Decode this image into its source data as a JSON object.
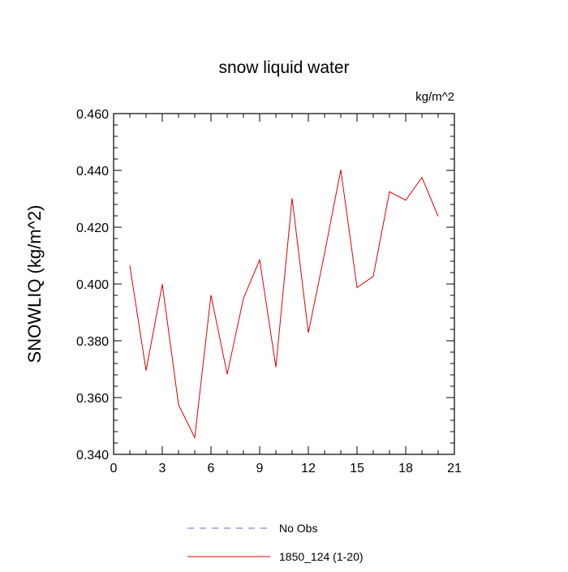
{
  "chart_data": {
    "type": "line",
    "title": "snow liquid water",
    "units_label": "kg/m^2",
    "xlabel": "",
    "ylabel": "SNOWLIQ  (kg/m^2)",
    "xlim": [
      0,
      21
    ],
    "ylim": [
      0.34,
      0.46
    ],
    "x_ticks": [
      0,
      3,
      6,
      9,
      12,
      15,
      18,
      21
    ],
    "x_tick_labels": [
      "0",
      "3",
      "6",
      "9",
      "12",
      "15",
      "18",
      "21"
    ],
    "y_ticks": [
      0.34,
      0.36,
      0.38,
      0.4,
      0.42,
      0.44,
      0.46
    ],
    "y_tick_labels": [
      "0.340",
      "0.360",
      "0.380",
      "0.400",
      "0.420",
      "0.440",
      "0.460"
    ],
    "grid": false,
    "legend_position": "bottom-center",
    "series": [
      {
        "name": "No Obs",
        "color": "#6a6adf",
        "dash": "dashed",
        "x": [],
        "y": []
      },
      {
        "name": "1850_124 (1-20)",
        "color": "#e00000",
        "dash": "solid",
        "x": [
          1,
          2,
          3,
          4,
          5,
          6,
          7,
          8,
          9,
          10,
          11,
          12,
          13,
          14,
          15,
          16,
          17,
          18,
          19,
          20
        ],
        "y": [
          0.4065,
          0.3695,
          0.3999,
          0.3575,
          0.3459,
          0.3961,
          0.3682,
          0.3949,
          0.4085,
          0.3707,
          0.4302,
          0.3828,
          0.4108,
          0.4402,
          0.3987,
          0.4027,
          0.4325,
          0.4295,
          0.4375,
          0.4238
        ]
      }
    ]
  }
}
